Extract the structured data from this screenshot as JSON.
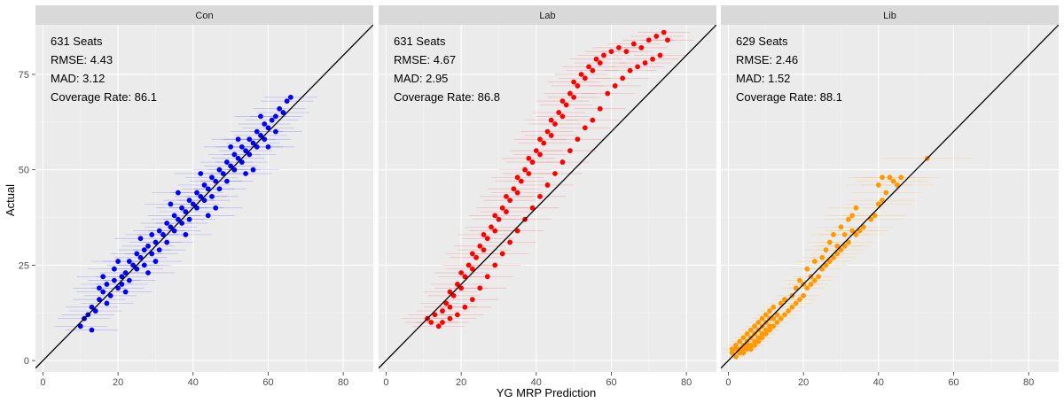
{
  "chart_data": {
    "type": "scatter",
    "xlabel": "YG MRP Prediction",
    "ylabel": "Actual",
    "xlim": [
      -2,
      88
    ],
    "ylim": [
      -3,
      88
    ],
    "x_ticks": [
      "0",
      "20",
      "40",
      "60",
      "80"
    ],
    "y_ticks": [
      "0",
      "25",
      "50",
      "75"
    ],
    "reference_line": "y = x",
    "grid": true,
    "background": "#EBEBEB",
    "panels": [
      {
        "name": "Con",
        "color": "#0000FF",
        "annotation": [
          "631 Seats",
          "RMSE: 4.43",
          "MAD:  3.12",
          "Coverage Rate: 86.1"
        ],
        "points": [
          [
            10,
            9
          ],
          [
            11,
            11
          ],
          [
            12,
            12
          ],
          [
            13,
            14
          ],
          [
            14,
            13
          ],
          [
            15,
            16
          ],
          [
            15,
            19
          ],
          [
            16,
            18
          ],
          [
            17,
            20
          ],
          [
            17,
            15
          ],
          [
            18,
            17
          ],
          [
            19,
            21
          ],
          [
            19,
            24
          ],
          [
            20,
            19
          ],
          [
            21,
            22
          ],
          [
            21,
            20
          ],
          [
            22,
            23
          ],
          [
            23,
            26
          ],
          [
            23,
            21
          ],
          [
            24,
            25
          ],
          [
            25,
            24
          ],
          [
            25,
            28
          ],
          [
            26,
            27
          ],
          [
            27,
            29
          ],
          [
            27,
            25
          ],
          [
            28,
            30
          ],
          [
            29,
            28
          ],
          [
            29,
            33
          ],
          [
            30,
            31
          ],
          [
            31,
            29
          ],
          [
            31,
            34
          ],
          [
            32,
            33
          ],
          [
            33,
            36
          ],
          [
            33,
            31
          ],
          [
            34,
            35
          ],
          [
            35,
            38
          ],
          [
            35,
            34
          ],
          [
            36,
            37
          ],
          [
            37,
            40
          ],
          [
            37,
            36
          ],
          [
            38,
            39
          ],
          [
            39,
            42
          ],
          [
            39,
            37
          ],
          [
            40,
            41
          ],
          [
            41,
            44
          ],
          [
            41,
            40
          ],
          [
            42,
            43
          ],
          [
            43,
            46
          ],
          [
            43,
            42
          ],
          [
            44,
            45
          ],
          [
            45,
            48
          ],
          [
            45,
            43
          ],
          [
            46,
            47
          ],
          [
            47,
            50
          ],
          [
            47,
            45
          ],
          [
            48,
            49
          ],
          [
            49,
            52
          ],
          [
            49,
            47
          ],
          [
            50,
            51
          ],
          [
            51,
            54
          ],
          [
            51,
            50
          ],
          [
            52,
            53
          ],
          [
            53,
            56
          ],
          [
            53,
            52
          ],
          [
            54,
            55
          ],
          [
            55,
            58
          ],
          [
            55,
            54
          ],
          [
            56,
            57
          ],
          [
            57,
            60
          ],
          [
            57,
            56
          ],
          [
            58,
            59
          ],
          [
            59,
            62
          ],
          [
            59,
            58
          ],
          [
            60,
            61
          ],
          [
            61,
            63
          ],
          [
            62,
            64
          ],
          [
            63,
            66
          ],
          [
            64,
            65
          ],
          [
            65,
            68
          ],
          [
            66,
            69
          ],
          [
            13,
            8
          ],
          [
            16,
            22
          ],
          [
            22,
            18
          ],
          [
            26,
            32
          ],
          [
            30,
            26
          ],
          [
            34,
            41
          ],
          [
            38,
            33
          ],
          [
            42,
            49
          ],
          [
            46,
            40
          ],
          [
            50,
            56
          ],
          [
            54,
            49
          ],
          [
            58,
            64
          ],
          [
            60,
            56
          ],
          [
            20,
            26
          ],
          [
            28,
            23
          ],
          [
            36,
            44
          ],
          [
            44,
            38
          ],
          [
            52,
            58
          ],
          [
            56,
            50
          ],
          [
            62,
            60
          ]
        ]
      },
      {
        "name": "Lab",
        "color": "#FF0000",
        "annotation": [
          "631 Seats",
          "RMSE: 4.67",
          "MAD:  2.95",
          "Coverage Rate: 86.8"
        ],
        "points": [
          [
            11,
            11
          ],
          [
            12,
            10
          ],
          [
            13,
            12
          ],
          [
            14,
            9
          ],
          [
            15,
            13
          ],
          [
            16,
            15
          ],
          [
            17,
            14
          ],
          [
            17,
            18
          ],
          [
            18,
            17
          ],
          [
            19,
            20
          ],
          [
            20,
            19
          ],
          [
            20,
            23
          ],
          [
            21,
            22
          ],
          [
            22,
            25
          ],
          [
            23,
            24
          ],
          [
            23,
            28
          ],
          [
            24,
            27
          ],
          [
            25,
            30
          ],
          [
            26,
            29
          ],
          [
            26,
            33
          ],
          [
            27,
            32
          ],
          [
            28,
            35
          ],
          [
            29,
            34
          ],
          [
            29,
            38
          ],
          [
            30,
            37
          ],
          [
            31,
            40
          ],
          [
            32,
            39
          ],
          [
            32,
            43
          ],
          [
            33,
            42
          ],
          [
            34,
            45
          ],
          [
            35,
            44
          ],
          [
            35,
            48
          ],
          [
            36,
            47
          ],
          [
            37,
            50
          ],
          [
            38,
            49
          ],
          [
            38,
            53
          ],
          [
            39,
            52
          ],
          [
            40,
            55
          ],
          [
            41,
            54
          ],
          [
            41,
            58
          ],
          [
            42,
            57
          ],
          [
            43,
            60
          ],
          [
            44,
            59
          ],
          [
            44,
            63
          ],
          [
            45,
            62
          ],
          [
            46,
            65
          ],
          [
            47,
            64
          ],
          [
            47,
            68
          ],
          [
            48,
            67
          ],
          [
            49,
            70
          ],
          [
            50,
            69
          ],
          [
            50,
            73
          ],
          [
            51,
            72
          ],
          [
            52,
            75
          ],
          [
            53,
            74
          ],
          [
            54,
            77
          ],
          [
            55,
            76
          ],
          [
            56,
            79
          ],
          [
            57,
            78
          ],
          [
            58,
            80
          ],
          [
            60,
            81
          ],
          [
            62,
            82
          ],
          [
            64,
            81
          ],
          [
            66,
            83
          ],
          [
            68,
            82
          ],
          [
            70,
            84
          ],
          [
            72,
            85
          ],
          [
            74,
            86
          ],
          [
            75,
            84
          ],
          [
            73,
            80
          ],
          [
            71,
            79
          ],
          [
            69,
            78
          ],
          [
            67,
            77
          ],
          [
            65,
            76
          ],
          [
            63,
            74
          ],
          [
            61,
            72
          ],
          [
            59,
            70
          ],
          [
            57,
            66
          ],
          [
            55,
            63
          ],
          [
            53,
            61
          ],
          [
            51,
            58
          ],
          [
            49,
            55
          ],
          [
            47,
            52
          ],
          [
            45,
            49
          ],
          [
            43,
            46
          ],
          [
            41,
            43
          ],
          [
            39,
            40
          ],
          [
            37,
            37
          ],
          [
            35,
            34
          ],
          [
            33,
            31
          ],
          [
            31,
            28
          ],
          [
            29,
            25
          ],
          [
            27,
            22
          ],
          [
            25,
            19
          ],
          [
            23,
            16
          ],
          [
            21,
            14
          ],
          [
            19,
            12
          ],
          [
            17,
            11
          ],
          [
            15,
            10
          ]
        ]
      },
      {
        "name": "Lib",
        "color": "#FF9900",
        "annotation": [
          "629 Seats",
          "RMSE: 2.46",
          "MAD:  1.52",
          "Coverage Rate: 88.1"
        ],
        "points": [
          [
            1,
            2
          ],
          [
            1,
            3
          ],
          [
            2,
            1
          ],
          [
            2,
            3
          ],
          [
            2,
            4
          ],
          [
            3,
            2
          ],
          [
            3,
            3
          ],
          [
            3,
            5
          ],
          [
            4,
            2
          ],
          [
            4,
            3
          ],
          [
            4,
            4
          ],
          [
            4,
            6
          ],
          [
            5,
            3
          ],
          [
            5,
            4
          ],
          [
            5,
            5
          ],
          [
            5,
            7
          ],
          [
            6,
            3
          ],
          [
            6,
            4
          ],
          [
            6,
            6
          ],
          [
            6,
            8
          ],
          [
            7,
            4
          ],
          [
            7,
            5
          ],
          [
            7,
            7
          ],
          [
            7,
            9
          ],
          [
            8,
            5
          ],
          [
            8,
            6
          ],
          [
            8,
            8
          ],
          [
            8,
            10
          ],
          [
            9,
            6
          ],
          [
            9,
            7
          ],
          [
            9,
            9
          ],
          [
            9,
            11
          ],
          [
            10,
            7
          ],
          [
            10,
            8
          ],
          [
            10,
            10
          ],
          [
            10,
            12
          ],
          [
            11,
            8
          ],
          [
            11,
            9
          ],
          [
            11,
            11
          ],
          [
            11,
            13
          ],
          [
            12,
            9
          ],
          [
            12,
            11
          ],
          [
            12,
            14
          ],
          [
            13,
            10
          ],
          [
            13,
            12
          ],
          [
            14,
            11
          ],
          [
            14,
            15
          ],
          [
            15,
            12
          ],
          [
            15,
            16
          ],
          [
            16,
            13
          ],
          [
            17,
            14
          ],
          [
            17,
            17
          ],
          [
            18,
            15
          ],
          [
            18,
            19
          ],
          [
            19,
            16
          ],
          [
            19,
            21
          ],
          [
            20,
            17
          ],
          [
            20,
            20
          ],
          [
            21,
            19
          ],
          [
            21,
            24
          ],
          [
            22,
            20
          ],
          [
            22,
            22
          ],
          [
            23,
            21
          ],
          [
            23,
            26
          ],
          [
            24,
            22
          ],
          [
            25,
            24
          ],
          [
            25,
            27
          ],
          [
            26,
            25
          ],
          [
            26,
            29
          ],
          [
            27,
            26
          ],
          [
            27,
            31
          ],
          [
            28,
            27
          ],
          [
            28,
            33
          ],
          [
            29,
            28
          ],
          [
            29,
            30
          ],
          [
            30,
            29
          ],
          [
            30,
            35
          ],
          [
            31,
            30
          ],
          [
            31,
            33
          ],
          [
            32,
            31
          ],
          [
            32,
            37
          ],
          [
            33,
            34
          ],
          [
            33,
            38
          ],
          [
            34,
            33
          ],
          [
            34,
            40
          ],
          [
            35,
            34
          ],
          [
            36,
            35
          ],
          [
            38,
            37
          ],
          [
            39,
            38
          ],
          [
            40,
            41
          ],
          [
            40,
            46
          ],
          [
            41,
            48
          ],
          [
            41,
            42
          ],
          [
            42,
            44
          ],
          [
            43,
            48
          ],
          [
            44,
            47
          ],
          [
            45,
            46
          ],
          [
            46,
            48
          ],
          [
            53,
            53
          ]
        ]
      }
    ]
  }
}
